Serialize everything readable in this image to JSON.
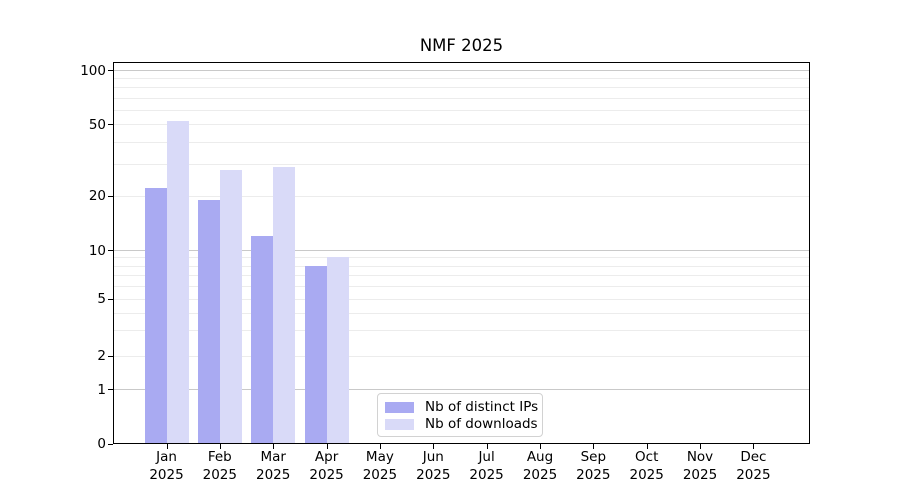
{
  "title": "NMF 2025",
  "chart_data": {
    "type": "bar",
    "title": "NMF 2025",
    "categories": [
      "Jan",
      "Feb",
      "Mar",
      "Apr",
      "May",
      "Jun",
      "Jul",
      "Aug",
      "Sep",
      "Oct",
      "Nov",
      "Dec"
    ],
    "year_label": "2025",
    "series": [
      {
        "name": "Nb of distinct IPs",
        "color": "#a9aaf2",
        "values": [
          22,
          19,
          12,
          8,
          null,
          null,
          null,
          null,
          null,
          null,
          null,
          null
        ]
      },
      {
        "name": "Nb of downloads",
        "color": "#d9daf8",
        "values": [
          52,
          28,
          29,
          9,
          null,
          null,
          null,
          null,
          null,
          null,
          null,
          null
        ]
      }
    ],
    "xlabel": "",
    "ylabel": "",
    "ylim": [
      0,
      100
    ],
    "yticks": [
      0,
      1,
      2,
      5,
      10,
      20,
      50,
      100
    ],
    "grid": true,
    "legend_position": "lower center",
    "scale": {
      "type": "custom-log-like",
      "tick_fractions": [
        [
          0,
          0
        ],
        [
          1,
          0.146
        ],
        [
          2,
          0.235
        ],
        [
          5,
          0.388
        ],
        [
          10,
          0.518
        ],
        [
          20,
          0.663
        ],
        [
          50,
          0.855
        ],
        [
          100,
          1.0
        ]
      ]
    },
    "major_gridline_values": [
      1,
      10,
      100
    ],
    "minor_gridline_values": [
      2,
      3,
      4,
      5,
      6,
      7,
      8,
      9,
      20,
      30,
      40,
      50,
      60,
      70,
      80,
      90
    ]
  },
  "colors": {
    "major_grid": "#c9c9c9",
    "minor_grid": "#ececec",
    "spine": "#000000",
    "legend_border": "#d2d2d2",
    "background": "#ffffff"
  }
}
